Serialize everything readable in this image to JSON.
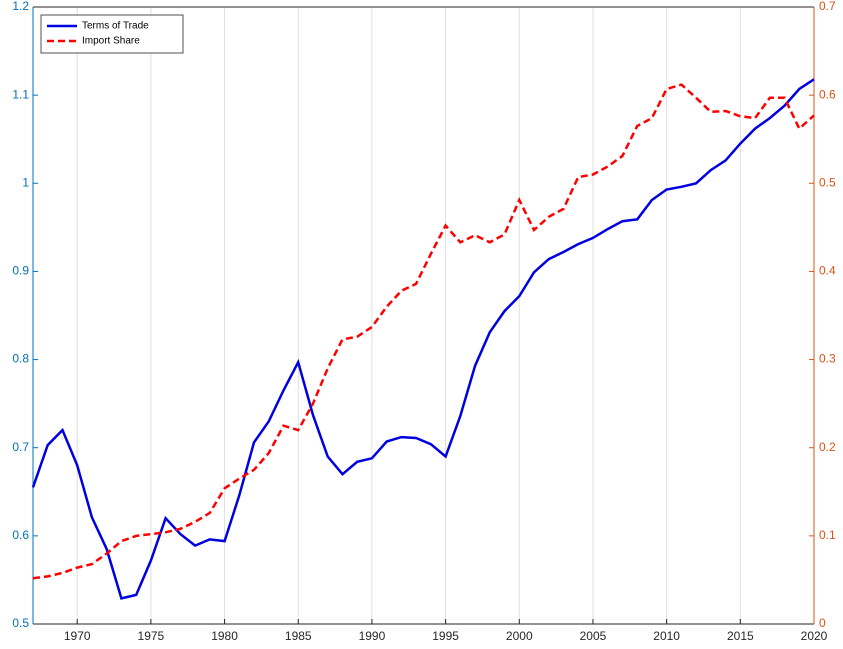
{
  "chart_data": {
    "type": "line",
    "x": [
      1967,
      1968,
      1969,
      1970,
      1971,
      1972,
      1973,
      1974,
      1975,
      1976,
      1977,
      1978,
      1979,
      1980,
      1981,
      1982,
      1983,
      1984,
      1985,
      1986,
      1987,
      1988,
      1989,
      1990,
      1991,
      1992,
      1993,
      1994,
      1995,
      1996,
      1997,
      1998,
      1999,
      2000,
      2001,
      2002,
      2003,
      2004,
      2005,
      2006,
      2007,
      2008,
      2009,
      2010,
      2011,
      2012,
      2013,
      2014,
      2015,
      2016,
      2017,
      2018,
      2019,
      2020
    ],
    "series": [
      {
        "name": "Terms of Trade",
        "color": "#0000e0",
        "dash": "solid",
        "values": [
          0.655,
          0.703,
          0.72,
          0.68,
          0.621,
          0.585,
          0.529,
          0.533,
          0.572,
          0.62,
          0.602,
          0.589,
          0.596,
          0.594,
          0.646,
          0.706,
          0.73,
          0.765,
          0.797,
          0.737,
          0.69,
          0.67,
          0.684,
          0.688,
          0.707,
          0.712,
          0.711,
          0.704,
          0.69,
          0.736,
          0.793,
          0.831,
          0.855,
          0.872,
          0.899,
          0.914,
          0.922,
          0.931,
          0.938,
          0.948,
          0.957,
          0.959,
          0.981,
          0.993,
          0.996,
          1.0,
          1.015,
          1.026,
          1.045,
          1.062,
          1.074,
          1.088,
          1.107,
          1.118
        ]
      },
      {
        "name": "Import Share",
        "color": "#ff0000",
        "dash": "dashed",
        "axis": "y2",
        "values": [
          0.052,
          0.054,
          0.058,
          0.064,
          0.068,
          0.08,
          0.094,
          0.1,
          0.102,
          0.104,
          0.108,
          0.116,
          0.126,
          0.154,
          0.165,
          0.175,
          0.194,
          0.225,
          0.22,
          0.25,
          0.29,
          0.323,
          0.326,
          0.337,
          0.36,
          0.378,
          0.386,
          0.42,
          0.452,
          0.433,
          0.441,
          0.433,
          0.442,
          0.481,
          0.447,
          0.462,
          0.471,
          0.507,
          0.51,
          0.519,
          0.531,
          0.565,
          0.574,
          0.607,
          0.612,
          0.597,
          0.581,
          0.582,
          0.576,
          0.574,
          0.597,
          0.597,
          0.562,
          0.577
        ]
      }
    ],
    "xlim": [
      1967,
      2020
    ],
    "xticks": [
      1970,
      1975,
      1980,
      1985,
      1990,
      1995,
      2000,
      2005,
      2010,
      2015,
      2020
    ],
    "ylim": [
      0.5,
      1.2
    ],
    "yticks": [
      0.5,
      0.6,
      0.7,
      0.8,
      0.9,
      1,
      1.1,
      1.2
    ],
    "ycolor": "#0072bd",
    "y2lim": [
      0,
      0.7
    ],
    "y2ticks": [
      0,
      0.1,
      0.2,
      0.3,
      0.4,
      0.5,
      0.6,
      0.7
    ],
    "y2color": "#d95319",
    "xgrid": true,
    "legend": "top-left"
  }
}
